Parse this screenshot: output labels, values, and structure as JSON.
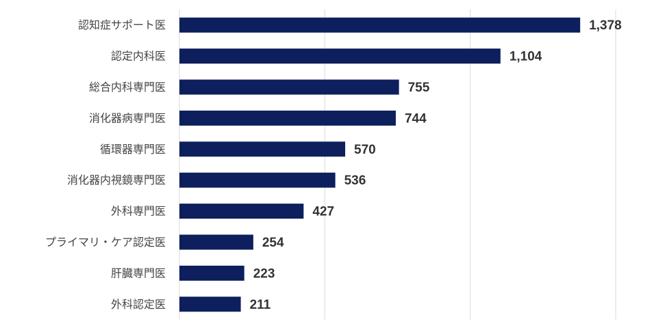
{
  "chart_data": {
    "type": "bar",
    "orientation": "horizontal",
    "categories": [
      "認知症サポート医",
      "認定内科医",
      "総合内科専門医",
      "消化器病専門医",
      "循環器専門医",
      "消化器内視鏡専門医",
      "外科専門医",
      "プライマリ・ケア認定医",
      "肝臓専門医",
      "外科認定医"
    ],
    "values": [
      1378,
      1104,
      755,
      744,
      570,
      536,
      427,
      254,
      223,
      211
    ],
    "value_labels": [
      "1,378",
      "1,104",
      "755",
      "744",
      "570",
      "536",
      "427",
      "254",
      "223",
      "211"
    ],
    "title": "",
    "xlabel": "",
    "ylabel": "",
    "xlim": [
      0,
      1500
    ],
    "grid": true,
    "grid_ticks": [
      0,
      500,
      1000,
      1500
    ],
    "bar_color": "#0d1f5c",
    "grid_color": "#d9d9d9"
  }
}
